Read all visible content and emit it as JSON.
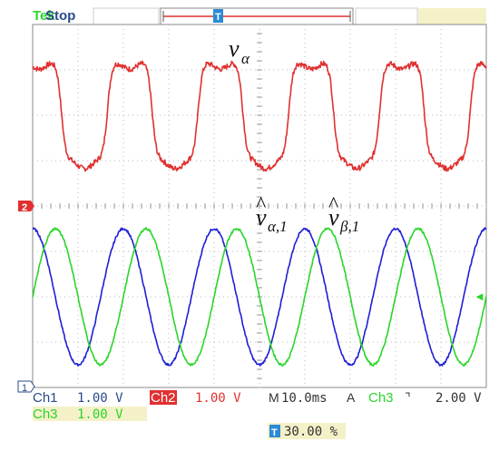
{
  "header": {
    "brand": "Tek",
    "run_state": "Stop",
    "trigger_marker_label": "T"
  },
  "waveforms": {
    "upper_label_main": "v",
    "upper_label_sub": "α",
    "lower_label_1_main": "v",
    "lower_label_1_hat": "^",
    "lower_label_1_sub": "α,1",
    "lower_label_2_main": "v",
    "lower_label_2_hat": "^",
    "lower_label_2_sub": "β,1"
  },
  "markers": {
    "ch2_marker": "2",
    "ch1_marker": "1",
    "ch3_level_marker": "◄"
  },
  "readouts": {
    "ch1_label": "Ch1",
    "ch1_scale": "1.00 V",
    "ch2_label": "Ch2",
    "ch2_scale": "1.00 V",
    "timebase_prefix": "M",
    "timebase": "10.0ms",
    "trigger_mode": "A",
    "trigger_source": "Ch3",
    "trigger_slope": "⌝",
    "trigger_level": "2.00 V",
    "ch3_label": "Ch3",
    "ch3_scale": "1.00 V",
    "trigger_position_icon": "T",
    "trigger_position": "30.00 %"
  },
  "colors": {
    "ch1": "#1f1fd6",
    "ch2": "#e03030",
    "ch3": "#2ad52a",
    "grid": "#b8b8b8",
    "background": "#ffffff",
    "trigger_marker": "#2a8ad6"
  },
  "chart_data": {
    "type": "line",
    "x_axis": {
      "divisions": 10,
      "units_per_division": "10.0ms",
      "range_ms": [
        0,
        100
      ]
    },
    "y_axis": {
      "divisions": 8,
      "units_per_division": "1.00 V"
    },
    "series": [
      {
        "name": "v_α",
        "channel": "Ch2",
        "shape": "distorted-square",
        "period_ms": 20,
        "amplitude_div": 1.1,
        "center_div": 2.0
      },
      {
        "name": "v̂_α,1",
        "channel": "Ch1",
        "shape": "sine",
        "period_ms": 20,
        "amplitude_div": 1.5,
        "center_div": -2.0,
        "phase_deg": 90
      },
      {
        "name": "v̂_β,1",
        "channel": "Ch3",
        "shape": "sine",
        "period_ms": 20,
        "amplitude_div": 1.5,
        "center_div": -2.0,
        "phase_deg": 0
      }
    ]
  }
}
